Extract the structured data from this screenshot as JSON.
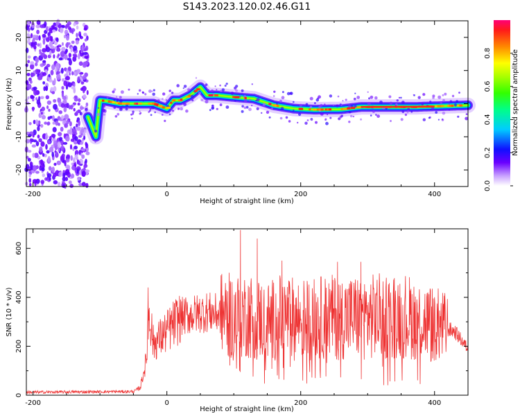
{
  "title": "S143.2023.120.02.46.G11",
  "chart_data": [
    {
      "type": "heatmap",
      "xlabel": "Height of straight line (km)",
      "ylabel": "Frequency (Hz)",
      "xlim": [
        -210,
        450
      ],
      "ylim": [
        -25,
        25
      ],
      "xticks": [
        -200,
        0,
        200,
        400
      ],
      "yticks": [
        -20,
        -10,
        0,
        10,
        20
      ],
      "colorbar": {
        "label": "Normalized spectral amplitude",
        "ticks": [
          "0.0",
          "0.2",
          "0.4",
          "0.6",
          "0.8"
        ],
        "range": [
          0,
          1
        ]
      },
      "noise_region_x": [
        -210,
        -118
      ],
      "ridge": {
        "x": [
          -118,
          -112,
          -106,
          -103,
          -100,
          -90,
          -70,
          -50,
          -20,
          0,
          10,
          20,
          35,
          50,
          60,
          75,
          100,
          130,
          160,
          190,
          220,
          260,
          290,
          330,
          370,
          400,
          450
        ],
        "y": [
          -4,
          -7,
          -10,
          -4,
          1,
          0.8,
          0,
          0,
          0,
          -1.5,
          1,
          1,
          2.5,
          5,
          2.5,
          2.5,
          2,
          1.5,
          -0.5,
          -1.5,
          -1.8,
          -1.7,
          -1,
          -1,
          -1,
          -0.8,
          -0.5
        ]
      },
      "grid": false
    },
    {
      "type": "line",
      "xlabel": "Height of straight line (km)",
      "ylabel": "SNR (10 * v/v)",
      "xlim": [
        -210,
        450
      ],
      "ylim": [
        0,
        680
      ],
      "xticks": [
        -200,
        0,
        200,
        400
      ],
      "yticks": [
        0,
        200,
        400,
        600
      ],
      "color": "#ee3333",
      "envelope": {
        "x": [
          -210,
          -50,
          -40,
          -30,
          -28,
          -20,
          0,
          20,
          60,
          100,
          120,
          150,
          170,
          200,
          250,
          300,
          350,
          400,
          430,
          450
        ],
        "mean": [
          12,
          15,
          30,
          150,
          380,
          210,
          260,
          320,
          340,
          320,
          330,
          300,
          320,
          310,
          320,
          320,
          330,
          290,
          260,
          190
        ]
      },
      "peaks": [
        {
          "x": 110,
          "y": 675
        },
        {
          "x": 135,
          "y": 640
        },
        {
          "x": 172,
          "y": 550
        },
        {
          "x": 255,
          "y": 545
        },
        {
          "x": 290,
          "y": 545
        },
        {
          "x": -28,
          "y": 400
        }
      ],
      "grid": false
    }
  ]
}
